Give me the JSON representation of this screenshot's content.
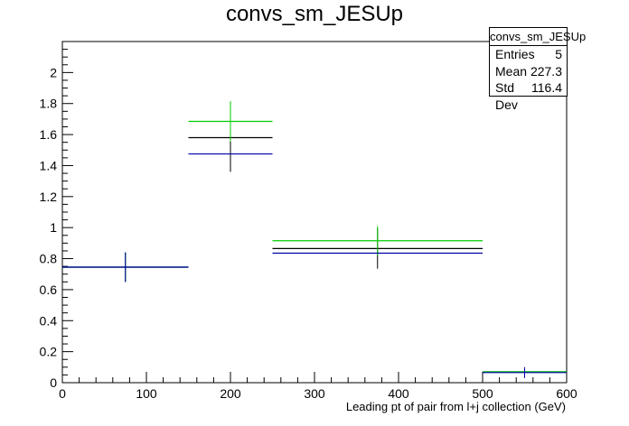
{
  "chart_data": {
    "type": "histogram",
    "title": "convs_sm_JESUp",
    "xlabel": "Leading pt of pair from l+j collection (GeV)",
    "ylabel": "",
    "xlim": [
      0,
      600
    ],
    "ylim": [
      0,
      2.2
    ],
    "x_ticks": [
      0,
      100,
      200,
      300,
      400,
      500,
      600
    ],
    "y_ticks": [
      0,
      0.2,
      0.4,
      0.6,
      0.8,
      1,
      1.2,
      1.4,
      1.6,
      1.8,
      2
    ],
    "bin_edges": [
      0,
      150,
      250,
      500,
      600
    ],
    "series": [
      {
        "color": "#000000",
        "bins": [
          {
            "x": 75,
            "y": 0.745,
            "err": 0.095,
            "lo": 0,
            "hi": 150
          },
          {
            "x": 200,
            "y": 1.58,
            "err": 0.22,
            "lo": 150,
            "hi": 250
          },
          {
            "x": 375,
            "y": 0.865,
            "err": 0.13,
            "lo": 250,
            "hi": 500
          },
          {
            "x": 550,
            "y": 0.07,
            "err": 0.03,
            "lo": 500,
            "hi": 600
          }
        ]
      },
      {
        "color": "#00cc00",
        "bins": [
          {
            "x": 75,
            "y": 0.745,
            "err": 0.095,
            "lo": 0,
            "hi": 150
          },
          {
            "x": 200,
            "y": 1.685,
            "err": 0.13,
            "lo": 150,
            "hi": 250
          },
          {
            "x": 375,
            "y": 0.915,
            "err": 0.095,
            "lo": 250,
            "hi": 500
          },
          {
            "x": 550,
            "y": 0.07,
            "err": 0.03,
            "lo": 500,
            "hi": 600
          }
        ]
      },
      {
        "color": "#0000aa",
        "bins": [
          {
            "x": 75,
            "y": 0.745,
            "err": 0.095,
            "lo": 0,
            "hi": 150
          },
          {
            "x": 200,
            "y": 1.475,
            "err": 0.0,
            "lo": 150,
            "hi": 250
          },
          {
            "x": 375,
            "y": 0.835,
            "err": 0.0,
            "lo": 250,
            "hi": 500
          },
          {
            "x": 550,
            "y": 0.065,
            "err": 0.035,
            "lo": 500,
            "hi": 600
          }
        ]
      }
    ],
    "stats_box": {
      "name": "convs_sm_JESUp",
      "rows": [
        {
          "label": "Entries",
          "value": "5"
        },
        {
          "label": "Mean",
          "value": "227.3"
        },
        {
          "label": "Std Dev",
          "value": "116.4"
        }
      ]
    }
  }
}
